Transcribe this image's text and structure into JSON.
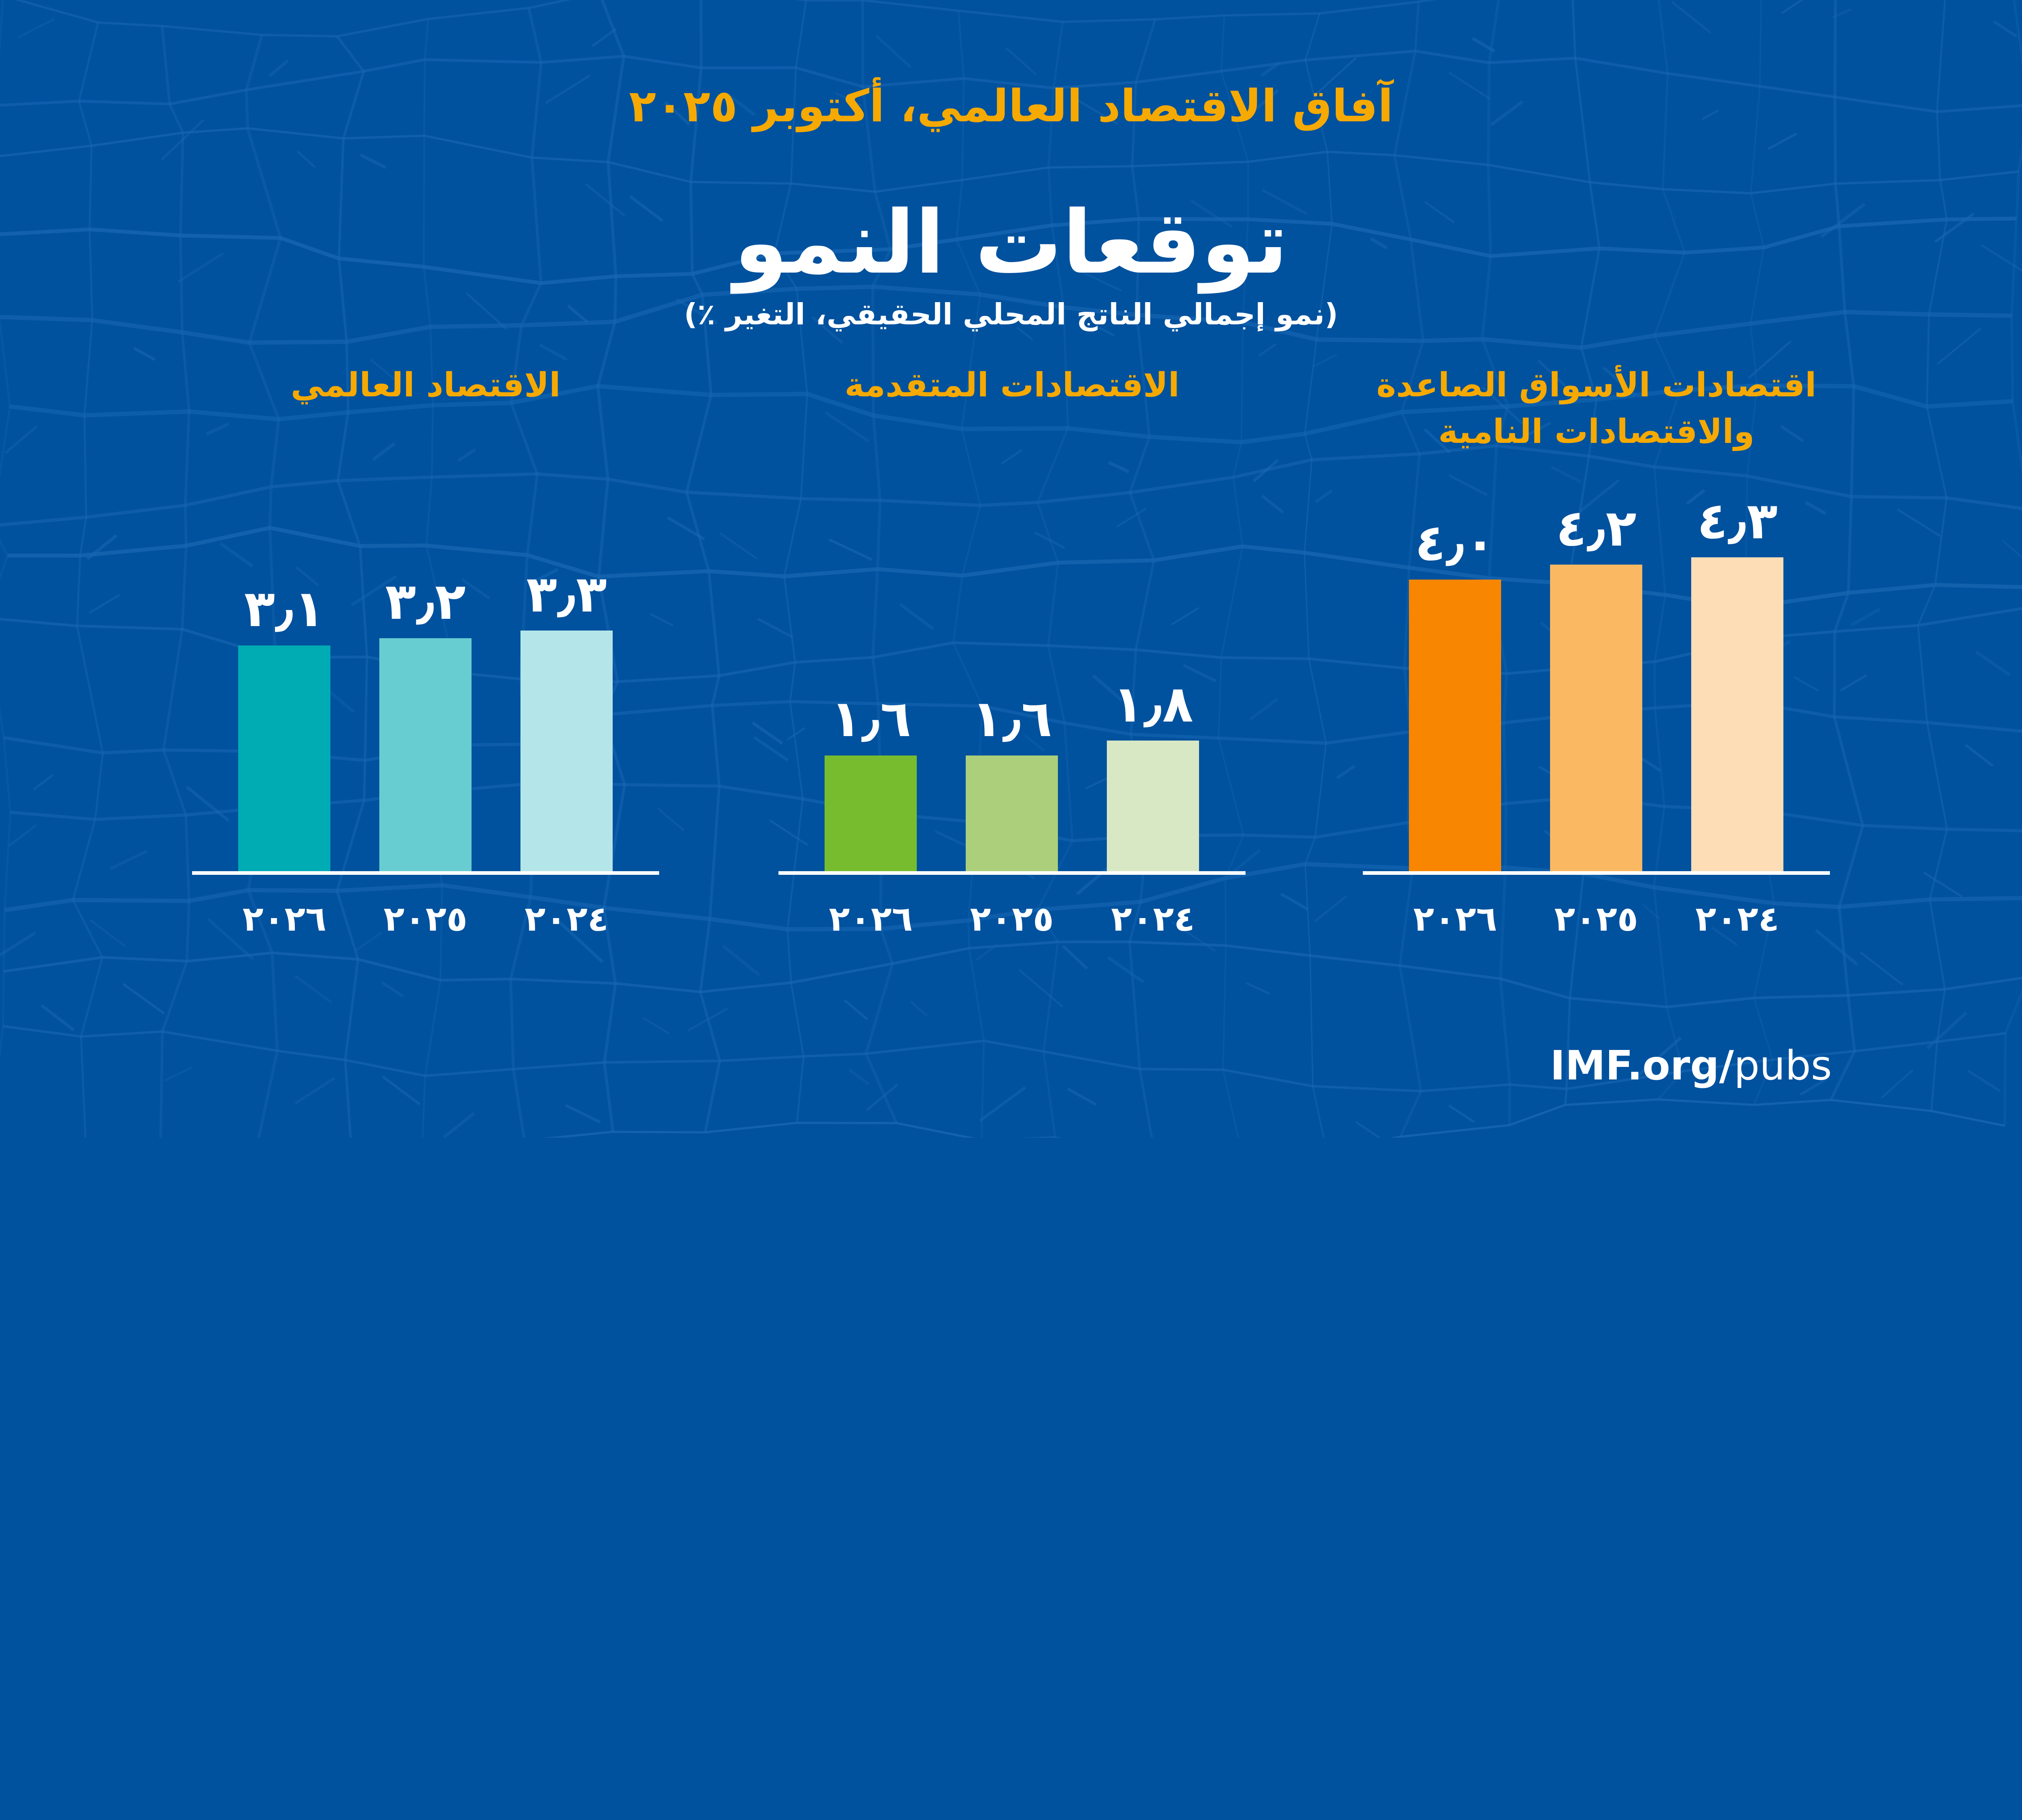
{
  "header": {
    "kicker": "آفاق الاقتصاد العالمي، أكتوبر ٢٠٢٥",
    "title": "توقعات النمو",
    "subtitle": "(نمو إجمالي الناتج المحلي الحقيقي، التغير ٪)"
  },
  "footer": {
    "brand_bold": "IMF.org/",
    "brand_light": "pubs"
  },
  "colors": {
    "background": "#00519E",
    "mesh_line": "#1767B3",
    "accent_gold": "#F6A900",
    "text_white": "#FFFFFF",
    "baseline": "#FFFFFF"
  },
  "chart_data": {
    "type": "bar",
    "title": "توقعات النمو",
    "subtitle": "(نمو إجمالي الناتج المحلي الحقيقي، التغير ٪)",
    "rtl": true,
    "grid": false,
    "legend": false,
    "ylim": [
      0,
      4.5
    ],
    "column_order_note": "columns run right-to-left chronologically: ٢٠٢٤ is the rightmost bar in each group",
    "categories": [
      "٢٠٢٦",
      "٢٠٢٥",
      "٢٠٢٤"
    ],
    "groups": [
      {
        "name": "الاقتصاد العالمي",
        "values": [
          3.1,
          3.2,
          3.3
        ],
        "values_display": [
          "٣٫١",
          "٣٫٢",
          "٣٫٣"
        ],
        "bar_colors": [
          "#00ACB4",
          "#67CDD1",
          "#B4E5E9"
        ]
      },
      {
        "name": "الاقتصادات المتقدمة",
        "values": [
          1.6,
          1.6,
          1.8
        ],
        "values_display": [
          "١٫٦",
          "١٫٦",
          "١٫٨"
        ],
        "bar_colors": [
          "#77BC2F",
          "#ABCF7A",
          "#D8E7C4"
        ]
      },
      {
        "name": "اقتصادات الأسواق الصاعدة والاقتصادات النامية",
        "values": [
          4.0,
          4.2,
          4.3
        ],
        "values_display": [
          "٤٫٠",
          "٤٫٢",
          "٤٫٣"
        ],
        "bar_colors": [
          "#F88600",
          "#FBB863",
          "#FCDDB6"
        ]
      }
    ]
  }
}
